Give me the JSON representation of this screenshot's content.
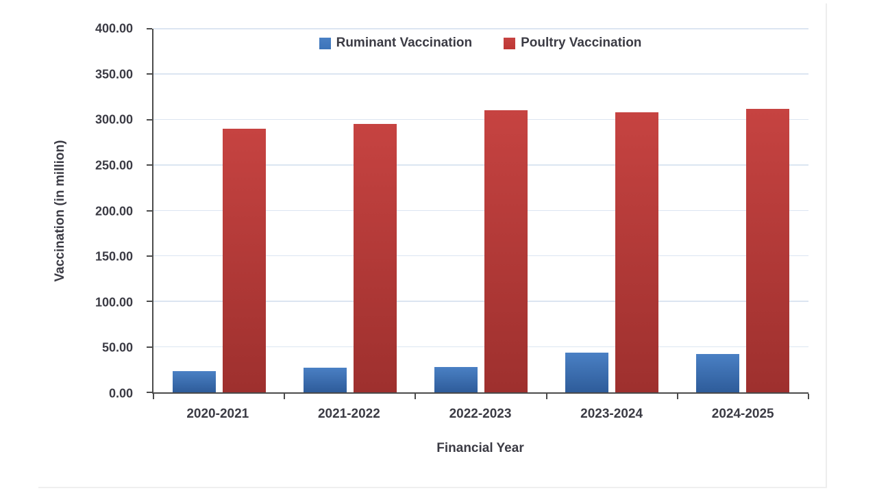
{
  "page": {
    "background": "#ffffff",
    "border_color": "#ededed"
  },
  "chart_data": {
    "type": "bar",
    "title": "",
    "categories": [
      "2020-2021",
      "2021-2022",
      "2022-2023",
      "2023-2024",
      "2024-2025"
    ],
    "series": [
      {
        "name": "Ruminant Vaccination",
        "values": [
          23,
          27,
          28,
          44,
          42
        ],
        "color_top": "#4a80c4",
        "color_bottom": "#2e5c9a",
        "legend_color": "#3c74b9"
      },
      {
        "name": "Poultry Vaccination",
        "values": [
          290,
          295,
          310,
          308,
          312
        ],
        "color_top": "#c64341",
        "color_bottom": "#9e302e",
        "legend_color": "#be3634"
      }
    ],
    "xlabel": "Financial Year",
    "ylabel": "Vaccination (in million)",
    "ylim": [
      0,
      400
    ],
    "ytick_step": 50,
    "ytick_labels": [
      "0.00",
      "50.00",
      "100.00",
      "150.00",
      "200.00",
      "250.00",
      "300.00",
      "350.00",
      "400.00"
    ],
    "grid": true,
    "gridline_color": "#dbe5f1",
    "axis_color": "#4a4a4a",
    "text_color": "#3b3b44",
    "legend_position": "top-center"
  }
}
